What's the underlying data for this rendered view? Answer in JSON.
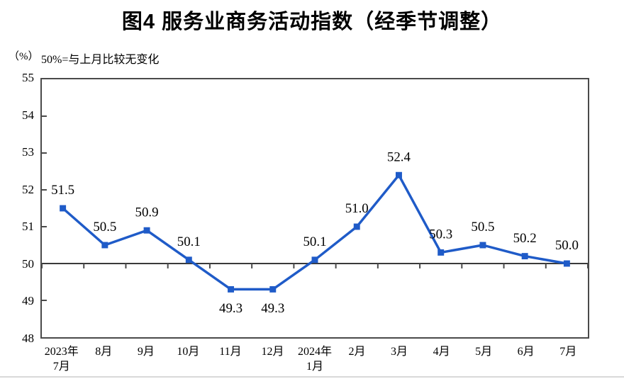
{
  "title": "图4  服务业商务活动指数（经季节调整）",
  "y_axis": {
    "unit": "（%）",
    "ticks": [
      55,
      54,
      53,
      52,
      51,
      50,
      49,
      48
    ],
    "min": 48,
    "max": 55
  },
  "reference_note": "50%=与上月比较无变化",
  "colors": {
    "line": "#1f5bc8",
    "marker": "#1f5bc8",
    "axis": "#4a4a4a",
    "reference_line": "#3a3a3a",
    "text": "#000000",
    "bottom_edge": "#d9d9d9"
  },
  "chart_data": {
    "type": "line",
    "title": "图4  服务业商务活动指数（经季节调整）",
    "categories": [
      "2023年\n7月",
      "8月",
      "9月",
      "10月",
      "11月",
      "12月",
      "2024年\n1月",
      "2月",
      "3月",
      "4月",
      "5月",
      "6月",
      "7月"
    ],
    "values": [
      51.5,
      50.5,
      50.9,
      50.1,
      49.3,
      49.3,
      50.1,
      51.0,
      52.4,
      50.3,
      50.5,
      50.2,
      50.0
    ],
    "data_labels": [
      "51.5",
      "50.5",
      "50.9",
      "50.1",
      "49.3",
      "49.3",
      "50.1",
      "51.0",
      "52.4",
      "50.3",
      "50.5",
      "50.2",
      "50.0"
    ],
    "ylim": [
      48,
      55
    ],
    "y_tick_step": 1,
    "reference_value": 50,
    "unit": "%",
    "marker": "square",
    "grid": false,
    "legend": "none"
  }
}
